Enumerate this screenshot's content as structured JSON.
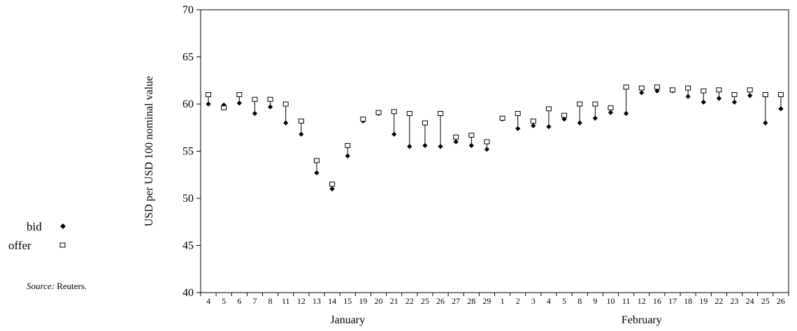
{
  "chart_data": {
    "type": "scatter",
    "ylabel": "USD per USD 100 nominal value",
    "ylim": [
      40,
      70
    ],
    "yticks": [
      40,
      45,
      50,
      55,
      60,
      65,
      70
    ],
    "grid": false,
    "categories": [
      "4",
      "5",
      "6",
      "7",
      "8",
      "11",
      "12",
      "13",
      "14",
      "15",
      "19",
      "20",
      "21",
      "22",
      "25",
      "26",
      "27",
      "28",
      "29",
      "1",
      "2",
      "3",
      "4",
      "5",
      "8",
      "9",
      "10",
      "11",
      "12",
      "16",
      "17",
      "18",
      "19",
      "22",
      "23",
      "24",
      "25",
      "26"
    ],
    "month_groups": [
      {
        "label": "January",
        "start": 0,
        "end": 18
      },
      {
        "label": "February",
        "start": 19,
        "end": 37
      }
    ],
    "series": [
      {
        "name": "bid",
        "marker": "filled-diamond",
        "values": [
          60.0,
          59.9,
          60.1,
          59.0,
          59.7,
          58.0,
          56.8,
          52.7,
          51.0,
          54.5,
          58.2,
          59.0,
          56.8,
          55.5,
          55.6,
          55.5,
          56.0,
          55.6,
          55.2,
          58.4,
          57.4,
          57.7,
          57.6,
          58.4,
          58.0,
          58.5,
          59.1,
          59.0,
          61.2,
          61.4,
          61.4,
          60.8,
          60.2,
          60.6,
          60.2,
          60.9,
          58.0,
          59.5
        ]
      },
      {
        "name": "offer",
        "marker": "open-square",
        "values": [
          61.0,
          59.6,
          61.0,
          60.5,
          60.5,
          60.0,
          58.2,
          54.0,
          51.5,
          55.6,
          58.4,
          59.1,
          59.2,
          59.0,
          58.0,
          59.0,
          56.5,
          56.7,
          56.0,
          58.5,
          59.0,
          58.2,
          59.5,
          58.8,
          60.0,
          60.0,
          59.6,
          61.8,
          61.7,
          61.8,
          61.5,
          61.7,
          61.4,
          61.5,
          61.0,
          61.5,
          61.0,
          61.0
        ]
      }
    ],
    "legend": {
      "position": "left",
      "entries": [
        {
          "label": "bid",
          "marker": "filled-diamond"
        },
        {
          "label": "offer",
          "marker": "open-square"
        }
      ]
    },
    "source_prefix": "Source:",
    "source_text": " Reuters."
  }
}
